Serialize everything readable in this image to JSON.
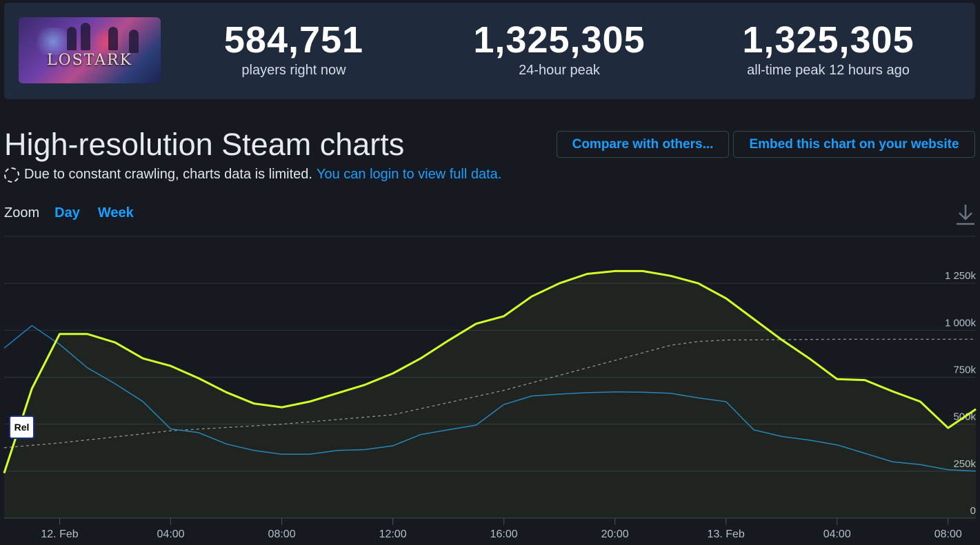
{
  "game": {
    "logo_text": "LOSTARK"
  },
  "stats": [
    {
      "value": "584,751",
      "label": "players right now"
    },
    {
      "value": "1,325,305",
      "label": "24-hour peak"
    },
    {
      "value": "1,325,305",
      "label": "all-time peak 12 hours ago"
    }
  ],
  "page": {
    "title": "High-resolution Steam charts",
    "compare_button": "Compare with others...",
    "embed_button": "Embed this chart on your website",
    "notice_text": "Due to constant crawling, charts data is limited.",
    "login_link": "You can login to view full data.",
    "zoom_label": "Zoom",
    "zoom_options": [
      "Day",
      "Week"
    ],
    "download_icon": "download-icon",
    "rel_badge": "Rel"
  },
  "colors": {
    "players_line": "#d4ff2a",
    "previous_line": "#1f7fc0",
    "average_line": "#8a8f96",
    "link": "#1a9fff"
  },
  "chart_data": {
    "type": "line",
    "ylim": [
      0,
      1500000
    ],
    "y_ticks": [
      {
        "value": 0,
        "label": "0"
      },
      {
        "value": 250000,
        "label": "250k"
      },
      {
        "value": 500000,
        "label": "500k"
      },
      {
        "value": 750000,
        "label": "750k"
      },
      {
        "value": 1000000,
        "label": "1 000k"
      },
      {
        "value": 1250000,
        "label": "1 250k"
      }
    ],
    "x_range": [
      "2022-02-11T22:00",
      "2022-02-13T09:00"
    ],
    "x_ticks": [
      {
        "t": "2022-02-12T00:00",
        "label": "12. Feb"
      },
      {
        "t": "2022-02-12T04:00",
        "label": "04:00"
      },
      {
        "t": "2022-02-12T08:00",
        "label": "08:00"
      },
      {
        "t": "2022-02-12T12:00",
        "label": "12:00"
      },
      {
        "t": "2022-02-12T16:00",
        "label": "16:00"
      },
      {
        "t": "2022-02-12T20:00",
        "label": "20:00"
      },
      {
        "t": "2022-02-13T00:00",
        "label": "13. Feb"
      },
      {
        "t": "2022-02-13T04:00",
        "label": "04:00"
      },
      {
        "t": "2022-02-13T08:00",
        "label": "08:00"
      }
    ],
    "series": [
      {
        "key": "players",
        "style": "area",
        "points": [
          [
            "2022-02-11T22:00",
            240000
          ],
          [
            "2022-02-11T23:00",
            690000
          ],
          [
            "2022-02-12T00:00",
            980000
          ],
          [
            "2022-02-12T01:00",
            980000
          ],
          [
            "2022-02-12T02:00",
            935000
          ],
          [
            "2022-02-12T03:00",
            850000
          ],
          [
            "2022-02-12T04:00",
            810000
          ],
          [
            "2022-02-12T05:00",
            745000
          ],
          [
            "2022-02-12T06:00",
            670000
          ],
          [
            "2022-02-12T07:00",
            610000
          ],
          [
            "2022-02-12T08:00",
            590000
          ],
          [
            "2022-02-12T09:00",
            620000
          ],
          [
            "2022-02-12T10:00",
            665000
          ],
          [
            "2022-02-12T11:00",
            710000
          ],
          [
            "2022-02-12T12:00",
            770000
          ],
          [
            "2022-02-12T13:00",
            850000
          ],
          [
            "2022-02-12T14:00",
            945000
          ],
          [
            "2022-02-12T15:00",
            1035000
          ],
          [
            "2022-02-12T16:00",
            1075000
          ],
          [
            "2022-02-12T17:00",
            1180000
          ],
          [
            "2022-02-12T18:00",
            1250000
          ],
          [
            "2022-02-12T19:00",
            1300000
          ],
          [
            "2022-02-12T20:00",
            1315000
          ],
          [
            "2022-02-12T21:00",
            1315000
          ],
          [
            "2022-02-12T22:00",
            1290000
          ],
          [
            "2022-02-12T23:00",
            1250000
          ],
          [
            "2022-02-13T00:00",
            1170000
          ],
          [
            "2022-02-13T01:00",
            1060000
          ],
          [
            "2022-02-13T02:00",
            950000
          ],
          [
            "2022-02-13T03:00",
            850000
          ],
          [
            "2022-02-13T04:00",
            740000
          ],
          [
            "2022-02-13T05:00",
            735000
          ],
          [
            "2022-02-13T06:00",
            675000
          ],
          [
            "2022-02-13T07:00",
            620000
          ],
          [
            "2022-02-13T08:00",
            480000
          ],
          [
            "2022-02-13T09:00",
            580000
          ]
        ]
      },
      {
        "key": "previous",
        "style": "line",
        "points": [
          [
            "2022-02-11T22:00",
            905000
          ],
          [
            "2022-02-11T23:00",
            1025000
          ],
          [
            "2022-02-12T00:00",
            925000
          ],
          [
            "2022-02-12T01:00",
            800000
          ],
          [
            "2022-02-12T02:00",
            715000
          ],
          [
            "2022-02-12T03:00",
            620000
          ],
          [
            "2022-02-12T04:00",
            475000
          ],
          [
            "2022-02-12T05:00",
            455000
          ],
          [
            "2022-02-12T06:00",
            395000
          ],
          [
            "2022-02-12T07:00",
            360000
          ],
          [
            "2022-02-12T08:00",
            340000
          ],
          [
            "2022-02-12T09:00",
            340000
          ],
          [
            "2022-02-12T10:00",
            360000
          ],
          [
            "2022-02-12T11:00",
            365000
          ],
          [
            "2022-02-12T12:00",
            385000
          ],
          [
            "2022-02-12T13:00",
            445000
          ],
          [
            "2022-02-12T14:00",
            470000
          ],
          [
            "2022-02-12T15:00",
            495000
          ],
          [
            "2022-02-12T16:00",
            605000
          ],
          [
            "2022-02-12T17:00",
            650000
          ],
          [
            "2022-02-12T18:00",
            660000
          ],
          [
            "2022-02-12T19:00",
            668000
          ],
          [
            "2022-02-12T20:00",
            672000
          ],
          [
            "2022-02-12T21:00",
            670000
          ],
          [
            "2022-02-12T22:00",
            665000
          ],
          [
            "2022-02-12T23:00",
            640000
          ],
          [
            "2022-02-13T00:00",
            620000
          ],
          [
            "2022-02-13T01:00",
            470000
          ],
          [
            "2022-02-13T02:00",
            435000
          ],
          [
            "2022-02-13T03:00",
            415000
          ],
          [
            "2022-02-13T04:00",
            390000
          ],
          [
            "2022-02-13T05:00",
            345000
          ],
          [
            "2022-02-13T06:00",
            300000
          ],
          [
            "2022-02-13T07:00",
            285000
          ],
          [
            "2022-02-13T08:00",
            258000
          ],
          [
            "2022-02-13T09:00",
            250000
          ]
        ]
      },
      {
        "key": "average",
        "style": "dashed",
        "points": [
          [
            "2022-02-11T22:00",
            375000
          ],
          [
            "2022-02-12T00:00",
            400000
          ],
          [
            "2022-02-12T04:00",
            465000
          ],
          [
            "2022-02-12T08:00",
            500000
          ],
          [
            "2022-02-12T12:00",
            550000
          ],
          [
            "2022-02-12T16:00",
            680000
          ],
          [
            "2022-02-12T20:00",
            840000
          ],
          [
            "2022-02-12T22:00",
            920000
          ],
          [
            "2022-02-12T23:00",
            940000
          ],
          [
            "2022-02-13T00:00",
            948000
          ],
          [
            "2022-02-13T04:00",
            952000
          ],
          [
            "2022-02-13T09:00",
            952000
          ]
        ]
      }
    ]
  }
}
